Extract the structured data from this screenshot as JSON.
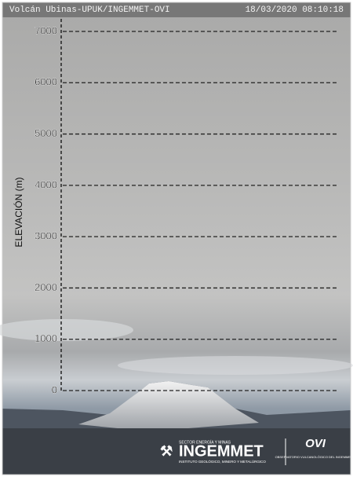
{
  "header": {
    "camera": "Volcán Ubinas-UPUK/INGEMMET-OVI",
    "timestamp": "18/03/2020 08:10:18"
  },
  "scale": {
    "label": "ELEVACIÓN (m)",
    "ylim": [
      0,
      7000
    ],
    "yticks": [
      0,
      1000,
      2000,
      3000,
      4000,
      5000,
      6000,
      7000
    ]
  },
  "logos": {
    "ingemmet": "INGEMMET",
    "ingemmet_top": "SECTOR ENERGÍA Y MINAS",
    "ingemmet_bottom": "INSTITUTO GEOLÓGICO, MINERO Y METALÚRGICO",
    "ovi": "OVI",
    "ovi_bottom": "OBSERVATORIO VULCANOLÓGICO DEL INGEMMET"
  }
}
